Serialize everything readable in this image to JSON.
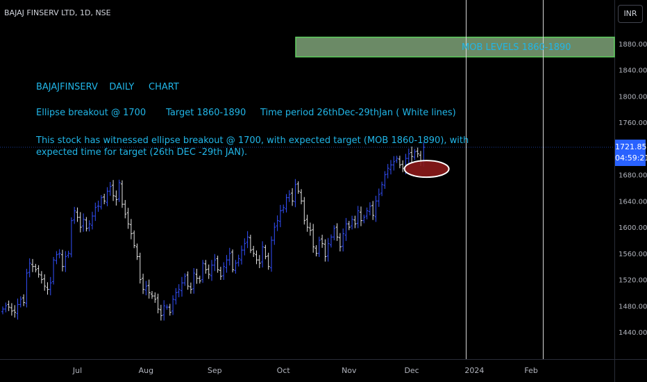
{
  "header": {
    "title": "BAJAJ FINSERV LTD, 1D, NSE",
    "currency": "INR"
  },
  "notes": {
    "line1": "BAJAJFINSERV    DAILY     CHART",
    "line2": "Ellipse breakout @ 1700       Target 1860-1890     Time period 26thDec-29thJan ( White lines)",
    "line3": "This stock has witnessed ellipse breakout @ 1700, with expected target (MOB 1860-1890), with",
    "line4": "expected time for target (26th DEC -29th JAN)."
  },
  "mob_label": "MOB LEVELS 1860-1890",
  "price_tag": {
    "price": "1721.85",
    "countdown": "04:59:21"
  },
  "colors": {
    "bg": "#000000",
    "up": "#3350ff",
    "down": "#e6e6e6",
    "note": "#21b6e8",
    "zone_fill": "#6b8a66",
    "zone_border": "#5fd05f",
    "ellipse": "#8b1a1a"
  },
  "chart_data": {
    "type": "ohlc",
    "yaxis": {
      "ticks": [
        1880,
        1840,
        1800,
        1760,
        1680,
        1640,
        1600,
        1560,
        1520,
        1480,
        1440
      ],
      "tick_labels": [
        "1880.00",
        "1840.00",
        "1800.00",
        "1760.00",
        "1680.00",
        "1640.00",
        "1600.00",
        "1560.00",
        "1520.00",
        "1480.00",
        "1440.00"
      ],
      "ylim": [
        1415,
        1915
      ]
    },
    "xaxis": {
      "labels": [
        "Jul",
        "Aug",
        "Sep",
        "Oct",
        "Nov",
        "Dec",
        "2024",
        "Feb"
      ],
      "label_bar_index": [
        25,
        48,
        71,
        94,
        116,
        137,
        158,
        177
      ]
    },
    "target_zone": [
      1860,
      1890
    ],
    "time_lines_bar_index": [
      155,
      181
    ],
    "ellipse": {
      "bar_center": 142,
      "price": 1689
    },
    "close": [
      1475,
      1480,
      1478,
      1472,
      1470,
      1482,
      1490,
      1485,
      1530,
      1545,
      1540,
      1535,
      1528,
      1520,
      1510,
      1505,
      1515,
      1550,
      1558,
      1560,
      1540,
      1555,
      1560,
      1610,
      1625,
      1615,
      1600,
      1612,
      1598,
      1605,
      1617,
      1630,
      1632,
      1645,
      1640,
      1655,
      1662,
      1648,
      1642,
      1668,
      1635,
      1620,
      1605,
      1590,
      1572,
      1555,
      1520,
      1505,
      1510,
      1500,
      1495,
      1490,
      1475,
      1465,
      1480,
      1478,
      1470,
      1490,
      1500,
      1505,
      1515,
      1525,
      1510,
      1505,
      1530,
      1522,
      1518,
      1545,
      1535,
      1528,
      1542,
      1550,
      1535,
      1525,
      1540,
      1550,
      1560,
      1535,
      1545,
      1552,
      1565,
      1575,
      1585,
      1565,
      1560,
      1550,
      1545,
      1570,
      1555,
      1540,
      1580,
      1600,
      1610,
      1625,
      1630,
      1645,
      1650,
      1640,
      1665,
      1655,
      1640,
      1610,
      1600,
      1595,
      1570,
      1560,
      1580,
      1575,
      1555,
      1575,
      1585,
      1598,
      1585,
      1570,
      1590,
      1605,
      1600,
      1612,
      1605,
      1625,
      1610,
      1615,
      1625,
      1632,
      1618,
      1640,
      1650,
      1665,
      1680,
      1690,
      1695,
      1700,
      1705,
      1695,
      1690,
      1705,
      1712,
      1708,
      1715,
      1712,
      1700,
      1722
    ]
  }
}
